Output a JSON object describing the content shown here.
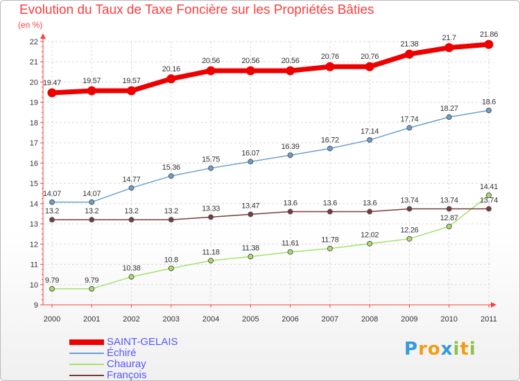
{
  "header": {
    "title": "Evolution du Taux de Taxe Foncière sur les Propriétés Bâties",
    "unit": "(en %)"
  },
  "logo": {
    "letters": [
      "P",
      "r",
      "o",
      "x",
      "i",
      "t",
      "i"
    ],
    "colors": [
      "#3399dd",
      "#f39c12",
      "#f39c12",
      "#3399dd",
      "#8bc34a",
      "#f39c12",
      "#8bc34a"
    ]
  },
  "chart_data": {
    "type": "line",
    "title": "Evolution du Taux de Taxe Foncière sur les Propriétés Bâties",
    "ylabel": "(en %)",
    "xlabel": "",
    "ylim": [
      9,
      22
    ],
    "yticks": [
      9,
      10,
      11,
      12,
      13,
      14,
      15,
      16,
      17,
      18,
      19,
      20,
      21,
      22
    ],
    "categories": [
      "2000",
      "2001",
      "2002",
      "2003",
      "2004",
      "2005",
      "2006",
      "2007",
      "2008",
      "2009",
      "2010",
      "2011"
    ],
    "series": [
      {
        "name": "SAINT-GELAIS",
        "color": "#ee0000",
        "values": [
          19.47,
          19.57,
          19.57,
          20.16,
          20.56,
          20.56,
          20.56,
          20.76,
          20.76,
          21.38,
          21.7,
          21.86
        ],
        "labels": [
          "19.47",
          "19.57",
          "19.57",
          "20.16",
          "20.56",
          "20.56",
          "20.56",
          "20.76",
          "20.76",
          "21.38",
          "21.7",
          "21.86"
        ]
      },
      {
        "name": "Échiré",
        "color": "#6c9fcf",
        "values": [
          14.07,
          14.07,
          14.77,
          15.36,
          15.75,
          16.07,
          16.39,
          16.72,
          17.14,
          17.74,
          18.27,
          18.6
        ],
        "labels": [
          "14.07",
          "14.07",
          "14.77",
          "15.36",
          "15.75",
          "16.07",
          "16.39",
          "16.72",
          "17.14",
          "17.74",
          "18.27",
          "18.6"
        ]
      },
      {
        "name": "Chauray",
        "color": "#a8e06a",
        "values": [
          9.79,
          9.79,
          10.38,
          10.8,
          11.18,
          11.38,
          11.61,
          11.78,
          12.02,
          12.26,
          12.87,
          14.41
        ],
        "labels": [
          "9.79",
          "9.79",
          "10.38",
          "10.8",
          "11.18",
          "11.38",
          "11.61",
          "11.78",
          "12.02",
          "12.26",
          "12.87",
          "14.41"
        ]
      },
      {
        "name": "François",
        "color": "#7a3a3a",
        "values": [
          13.2,
          13.2,
          13.2,
          13.2,
          13.33,
          13.47,
          13.6,
          13.6,
          13.6,
          13.74,
          13.74,
          13.74
        ],
        "labels": [
          "13.2",
          "13.2",
          "13.2",
          "13.2",
          "13.33",
          "13.47",
          "13.6",
          "13.6",
          "13.6",
          "13.74",
          "13.74",
          "13.74"
        ]
      }
    ]
  }
}
